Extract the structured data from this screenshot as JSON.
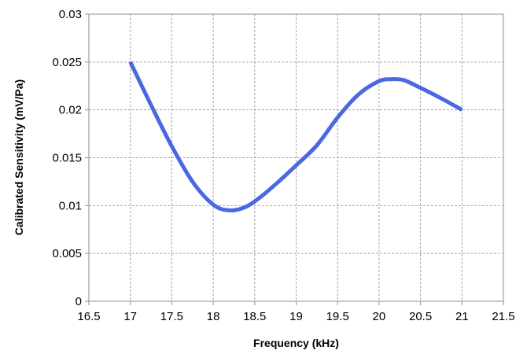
{
  "chart_data": {
    "type": "line",
    "title": "",
    "xlabel": "Frequency (kHz)",
    "ylabel": "Calibrated Sensitivity (mV/Pa)",
    "xlim": [
      16.5,
      21.5
    ],
    "ylim": [
      0,
      0.03
    ],
    "x_ticks": [
      "16.5",
      "17",
      "17.5",
      "18",
      "18.5",
      "19",
      "19.5",
      "20",
      "20.5",
      "21",
      "21.5"
    ],
    "y_ticks": [
      "0",
      "0.005",
      "0.01",
      "0.015",
      "0.02",
      "0.025",
      "0.03"
    ],
    "grid": true,
    "legend": "none",
    "series": [
      {
        "color": "#4a68e0",
        "smooth": true,
        "x": [
          17,
          17.25,
          17.5,
          17.75,
          18,
          18.2,
          18.4,
          18.6,
          18.8,
          19,
          19.25,
          19.5,
          19.75,
          20,
          20.15,
          20.3,
          20.5,
          20.75,
          21
        ],
        "y": [
          0.025,
          0.0205,
          0.0162,
          0.0125,
          0.0101,
          0.0095,
          0.0099,
          0.0111,
          0.0126,
          0.0142,
          0.0163,
          0.0192,
          0.0216,
          0.023,
          0.0232,
          0.0231,
          0.0223,
          0.0212,
          0.02
        ]
      }
    ]
  }
}
